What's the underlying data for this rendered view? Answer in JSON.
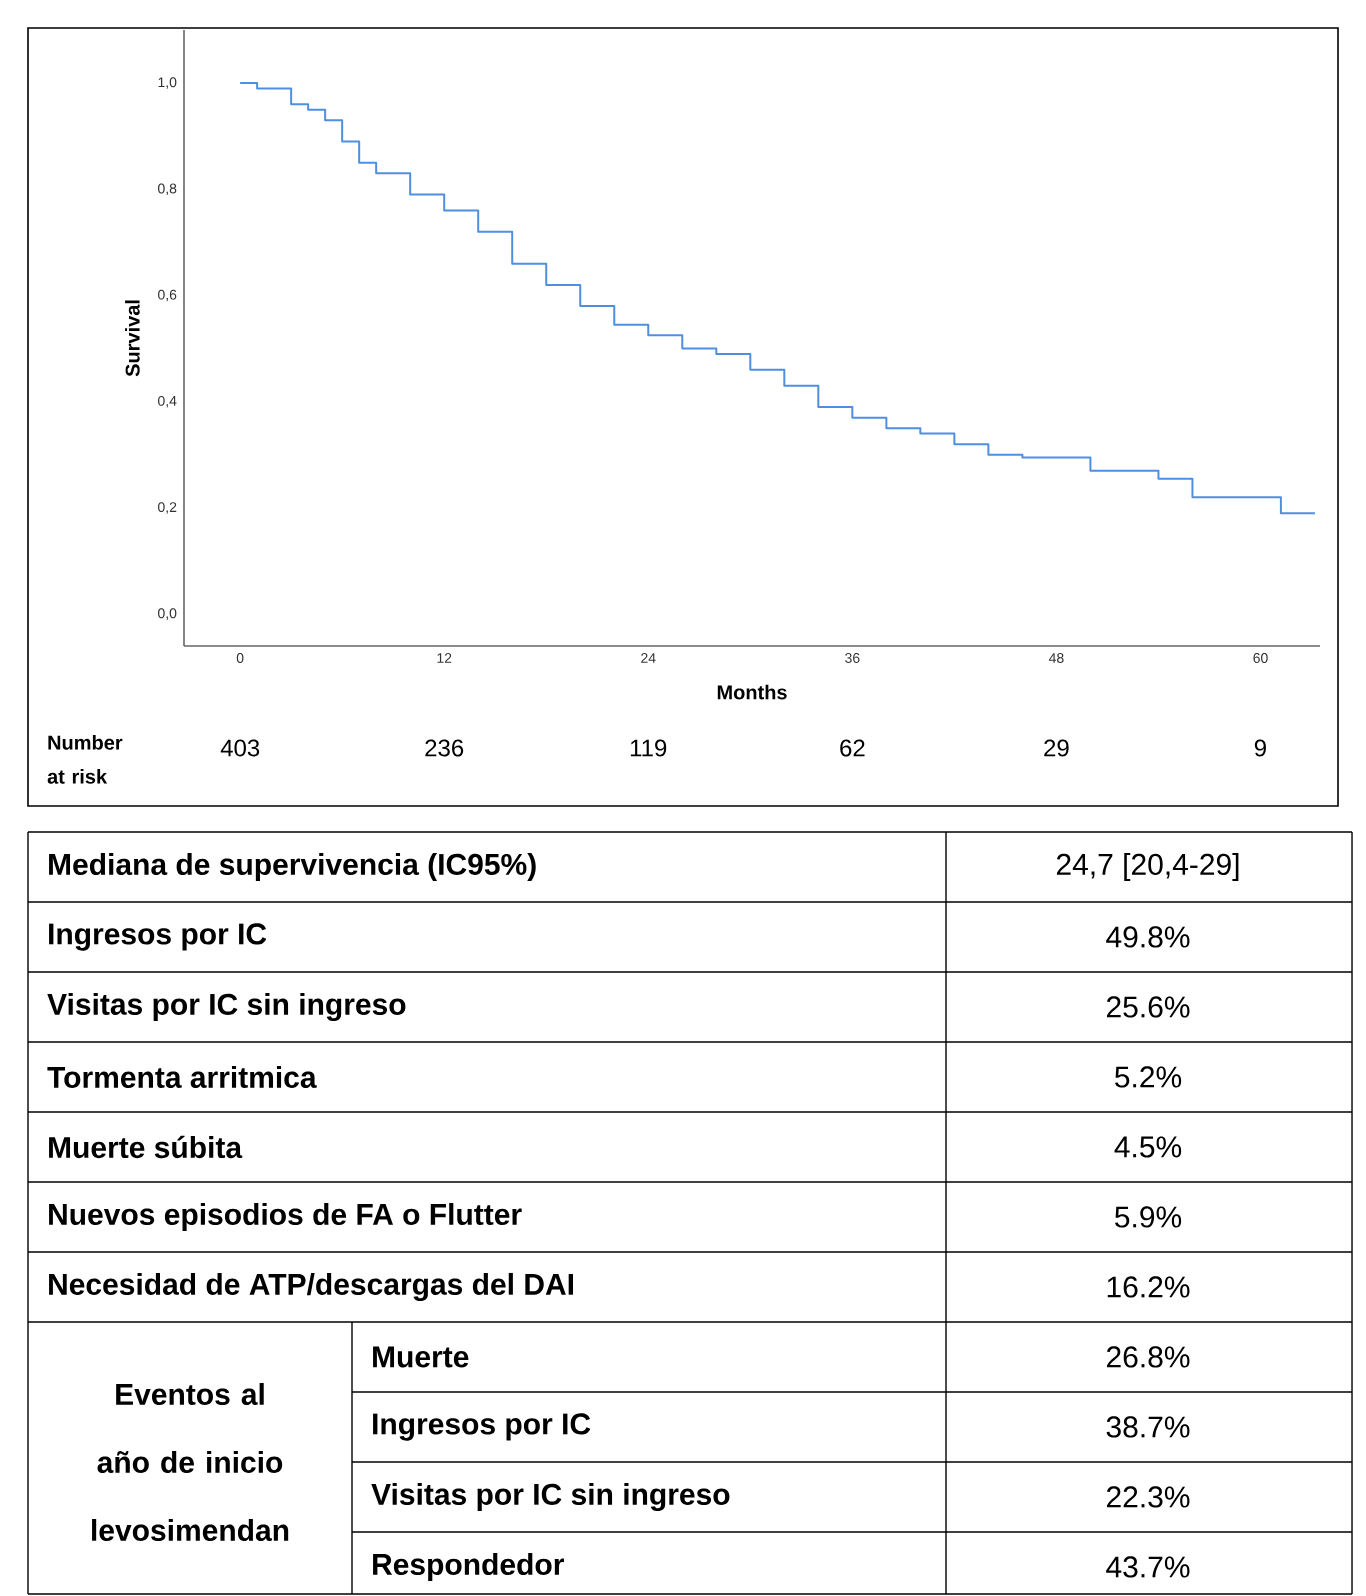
{
  "chart_data": {
    "type": "step",
    "xlabel": "Months",
    "ylabel": "Survival",
    "x": [
      0,
      1,
      3,
      4,
      5,
      6,
      7,
      8,
      10,
      12,
      14,
      16,
      18,
      20,
      22,
      24,
      26,
      28,
      30,
      32,
      34,
      36,
      38,
      40,
      42,
      44,
      46,
      48,
      50,
      52,
      54,
      56,
      58,
      60,
      61.2,
      63.2
    ],
    "series": [
      {
        "color": "#4f8fdf",
        "values": [
          1.0,
          0.99,
          0.96,
          0.95,
          0.93,
          0.89,
          0.85,
          0.83,
          0.79,
          0.76,
          0.72,
          0.66,
          0.62,
          0.58,
          0.545,
          0.525,
          0.5,
          0.49,
          0.46,
          0.43,
          0.39,
          0.37,
          0.35,
          0.34,
          0.32,
          0.3,
          0.295,
          0.295,
          0.27,
          0.27,
          0.255,
          0.22,
          0.22,
          0.22,
          0.19,
          0.19
        ]
      }
    ],
    "xlim": [
      -3.3,
      63.5
    ],
    "ylim": [
      -0.06,
      1.1
    ],
    "xticks": [
      0,
      12,
      24,
      36,
      48,
      60
    ],
    "yticks": [
      {
        "value": 0,
        "label": "0,0"
      },
      {
        "value": 0.2,
        "label": "0,2"
      },
      {
        "value": 0.4,
        "label": "0,4"
      },
      {
        "value": 0.6,
        "label": "0,6"
      },
      {
        "value": 0.8,
        "label": "0,8"
      },
      {
        "value": 1.0,
        "label": "1,0"
      }
    ],
    "grid": false,
    "annotations": [
      "Number at risk",
      "403",
      "236",
      "119",
      "62",
      "29",
      "9",
      "Mediana  de supervivencia (IC95%)",
      "24,7 [20,4-29]",
      "Ingresos por IC",
      "49.8%",
      "Visitas por IC sin ingreso",
      "25.6%",
      "Tormenta arritmica",
      "5.2%",
      "Muerte súbita",
      "4.5%",
      "Nuevos episodios de FA o Flutter",
      "5.9%",
      "Necesidad de ATP/descargas del DAI",
      "16.2%",
      "Eventos al año de inicio levosimendan",
      "Muerte",
      "26.8%",
      "Ingresos por IC",
      "38.7%",
      "Visitas por IC sin ingreso",
      "22.3%",
      "Respondedor",
      "43.7%"
    ]
  }
}
